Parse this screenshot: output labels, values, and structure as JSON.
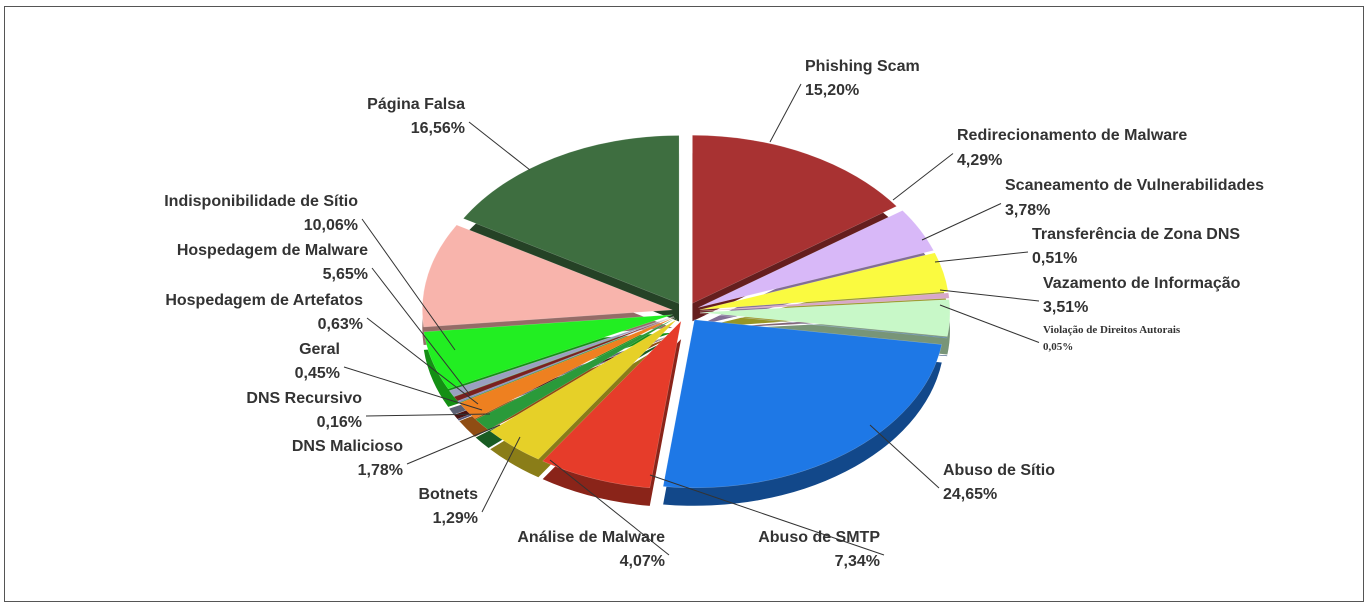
{
  "chart_data": {
    "type": "pie",
    "categories": [
      "Phishing Scam",
      "Redirecionamento de Malware",
      "Scaneamento de Vulnerabilidades",
      "Transferência de Zona DNS",
      "Vazamento de Informação",
      "Violação de Direitos Autorais",
      "Abuso de Sítio",
      "Abuso de SMTP",
      "Análise de Malware",
      "Botnets",
      "DNS Malicioso",
      "DNS Recursivo",
      "Geral",
      "Hospedagem de Artefatos",
      "Hospedagem de Malware",
      "Indisponibilidade de Sítio",
      "Página Falsa"
    ],
    "values": [
      15.2,
      4.29,
      3.78,
      0.51,
      3.51,
      0.05,
      24.65,
      7.34,
      4.07,
      1.29,
      1.78,
      0.16,
      0.45,
      0.63,
      5.65,
      10.06,
      16.56
    ],
    "value_labels": [
      "15,20%",
      "4,29%",
      "3,78%",
      "0,51%",
      "3,51%",
      "0,05%",
      "24,65%",
      "7,34%",
      "4,07%",
      "1,29%",
      "1,78%",
      "0,16%",
      "0,45%",
      "0,63%",
      "5,65%",
      "10,06%",
      "16,56%"
    ],
    "colors": [
      "#a83232",
      "#d8b8f8",
      "#fafa40",
      "#d8a8c8",
      "#c8f8c8",
      "#1050a8",
      "#1e78e6",
      "#e63c2a",
      "#e6d028",
      "#2a9a3a",
      "#ee8020",
      "#8c8cc8",
      "#7a2020",
      "#9aa0c0",
      "#22ee22",
      "#f8b4ac",
      "#3e6e40"
    ]
  }
}
